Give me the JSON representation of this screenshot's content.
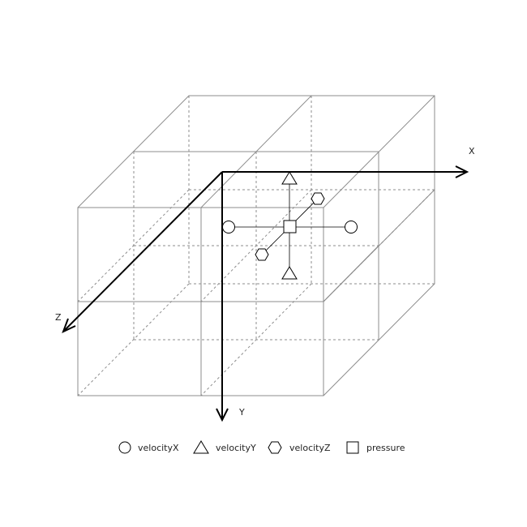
{
  "axes": {
    "x_label": "X",
    "y_label": "Y",
    "z_label": "Z"
  },
  "legend": [
    {
      "shape": "circle",
      "label": "velocityX"
    },
    {
      "shape": "triangle",
      "label": "velocityY"
    },
    {
      "shape": "hexagon",
      "label": "velocityZ"
    },
    {
      "shape": "square",
      "label": "pressure"
    }
  ]
}
